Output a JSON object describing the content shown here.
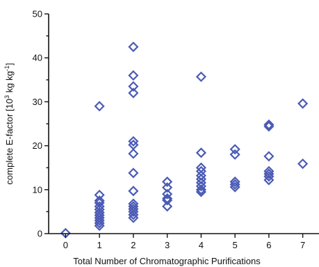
{
  "chart_data": {
    "type": "scatter",
    "xlabel": "Total Number of Chromatographic Purifications",
    "ylabel_parts": [
      "complete E-factor [10",
      "3",
      " kg kg",
      "-1",
      "]"
    ],
    "xlim": [
      -0.5,
      7.5
    ],
    "ylim": [
      0,
      50
    ],
    "x_ticks": [
      0,
      1,
      2,
      3,
      4,
      5,
      6,
      7
    ],
    "y_ticks": [
      0,
      10,
      20,
      30,
      40,
      50
    ],
    "y_minor_ticks": [
      5,
      15,
      25,
      35,
      45
    ],
    "grid": false,
    "marker": "diamond-open",
    "marker_color": "#4a5ab5",
    "points": [
      {
        "x": 0,
        "y": 0.1
      },
      {
        "x": 1,
        "y": 29.0
      },
      {
        "x": 1,
        "y": 8.8
      },
      {
        "x": 1,
        "y": 7.5
      },
      {
        "x": 1,
        "y": 7.0
      },
      {
        "x": 1,
        "y": 6.2
      },
      {
        "x": 1,
        "y": 5.5
      },
      {
        "x": 1,
        "y": 4.8
      },
      {
        "x": 1,
        "y": 4.2
      },
      {
        "x": 1,
        "y": 3.6
      },
      {
        "x": 1,
        "y": 3.0
      },
      {
        "x": 1,
        "y": 2.4
      },
      {
        "x": 1,
        "y": 1.8
      },
      {
        "x": 2,
        "y": 42.5
      },
      {
        "x": 2,
        "y": 36.0
      },
      {
        "x": 2,
        "y": 33.5
      },
      {
        "x": 2,
        "y": 32.0
      },
      {
        "x": 2,
        "y": 21.0
      },
      {
        "x": 2,
        "y": 20.2
      },
      {
        "x": 2,
        "y": 18.2
      },
      {
        "x": 2,
        "y": 13.8
      },
      {
        "x": 2,
        "y": 9.7
      },
      {
        "x": 2,
        "y": 6.8
      },
      {
        "x": 2,
        "y": 6.2
      },
      {
        "x": 2,
        "y": 5.6
      },
      {
        "x": 2,
        "y": 5.0
      },
      {
        "x": 2,
        "y": 4.3
      },
      {
        "x": 2,
        "y": 3.6
      },
      {
        "x": 3,
        "y": 11.8
      },
      {
        "x": 3,
        "y": 10.5
      },
      {
        "x": 3,
        "y": 9.0
      },
      {
        "x": 3,
        "y": 8.0
      },
      {
        "x": 3,
        "y": 7.6
      },
      {
        "x": 3,
        "y": 6.2
      },
      {
        "x": 4,
        "y": 35.7
      },
      {
        "x": 4,
        "y": 18.4
      },
      {
        "x": 4,
        "y": 15.0
      },
      {
        "x": 4,
        "y": 14.2
      },
      {
        "x": 4,
        "y": 13.2
      },
      {
        "x": 4,
        "y": 12.4
      },
      {
        "x": 4,
        "y": 11.6
      },
      {
        "x": 4,
        "y": 10.8
      },
      {
        "x": 4,
        "y": 10.0
      },
      {
        "x": 4,
        "y": 9.5
      },
      {
        "x": 5,
        "y": 19.2
      },
      {
        "x": 5,
        "y": 18.0
      },
      {
        "x": 5,
        "y": 11.8
      },
      {
        "x": 5,
        "y": 11.2
      },
      {
        "x": 5,
        "y": 10.6
      },
      {
        "x": 6,
        "y": 24.8
      },
      {
        "x": 6,
        "y": 24.4
      },
      {
        "x": 6,
        "y": 17.6
      },
      {
        "x": 6,
        "y": 14.2
      },
      {
        "x": 6,
        "y": 13.6
      },
      {
        "x": 6,
        "y": 13.0
      },
      {
        "x": 6,
        "y": 12.2
      },
      {
        "x": 7,
        "y": 29.6
      },
      {
        "x": 7,
        "y": 15.9
      }
    ]
  }
}
